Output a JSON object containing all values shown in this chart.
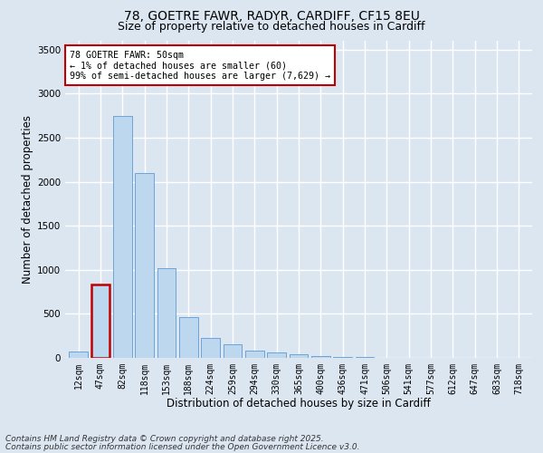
{
  "title1": "78, GOETRE FAWR, RADYR, CARDIFF, CF15 8EU",
  "title2": "Size of property relative to detached houses in Cardiff",
  "xlabel": "Distribution of detached houses by size in Cardiff",
  "ylabel": "Number of detached properties",
  "categories": [
    "12sqm",
    "47sqm",
    "82sqm",
    "118sqm",
    "153sqm",
    "188sqm",
    "224sqm",
    "259sqm",
    "294sqm",
    "330sqm",
    "365sqm",
    "400sqm",
    "436sqm",
    "471sqm",
    "506sqm",
    "541sqm",
    "577sqm",
    "612sqm",
    "647sqm",
    "683sqm",
    "718sqm"
  ],
  "values": [
    75,
    830,
    2750,
    2100,
    1020,
    460,
    230,
    150,
    80,
    60,
    40,
    25,
    15,
    8,
    5,
    3,
    2,
    1,
    1,
    0,
    0
  ],
  "highlight_index": 1,
  "highlight_color": "#c00000",
  "bar_color": "#bdd7ee",
  "bar_edge_color": "#5b9bd5",
  "ylim": [
    0,
    3600
  ],
  "annotation_text": "78 GOETRE FAWR: 50sqm\n← 1% of detached houses are smaller (60)\n99% of semi-detached houses are larger (7,629) →",
  "annotation_box_color": "#ffffff",
  "annotation_box_edge": "#c00000",
  "footer1": "Contains HM Land Registry data © Crown copyright and database right 2025.",
  "footer2": "Contains public sector information licensed under the Open Government Licence v3.0.",
  "background_color": "#dce6f1",
  "plot_bg_color": "#dce6f1",
  "grid_color": "#ffffff",
  "title_fontsize": 10,
  "subtitle_fontsize": 9,
  "tick_fontsize": 7,
  "axis_label_fontsize": 8.5,
  "footer_fontsize": 6.5
}
